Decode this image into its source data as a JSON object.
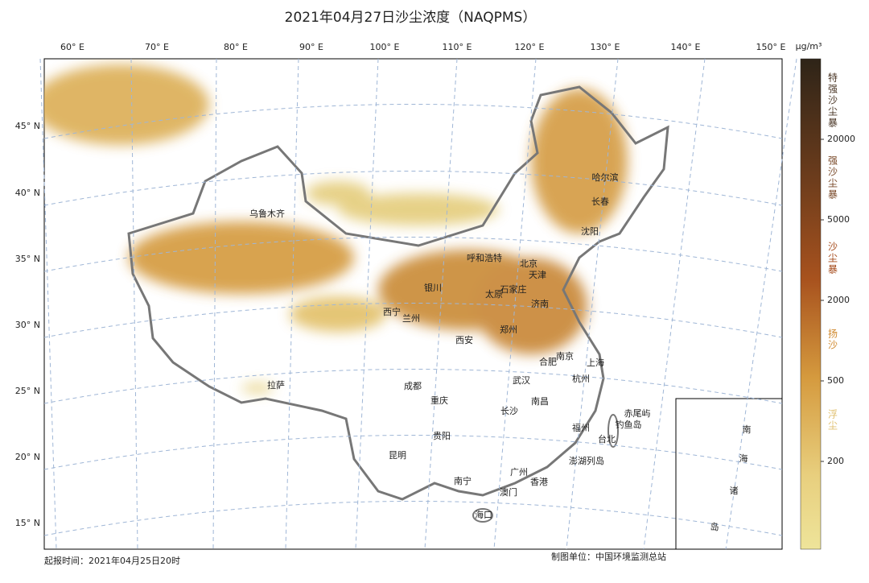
{
  "title": "2021年04月27日沙尘浓度（NAQPMS）",
  "longitude_labels": [
    "60° E",
    "70° E",
    "80° E",
    "90° E",
    "100° E",
    "110° E",
    "120° E",
    "130° E",
    "140° E",
    "150° E"
  ],
  "latitude_labels": [
    "45° N",
    "40° N",
    "35° N",
    "30° N",
    "25° N",
    "20° N",
    "15° N"
  ],
  "cities": [
    "乌鲁木齐",
    "哈尔滨",
    "长春",
    "沈阳",
    "呼和浩特",
    "北京",
    "天津",
    "银川",
    "石家庄",
    "太原",
    "济南",
    "西宁",
    "兰州",
    "郑州",
    "西安",
    "合肥",
    "南京",
    "上海",
    "武汉",
    "杭州",
    "拉萨",
    "成都",
    "重庆",
    "南昌",
    "长沙",
    "福州",
    "赤尾屿",
    "钓鱼岛",
    "贵阳",
    "台北",
    "昆明",
    "澎湖列岛",
    "广州",
    "南宁",
    "香港",
    "澳门",
    "海口"
  ],
  "inset_labels": [
    "南",
    "海",
    "诸",
    "岛"
  ],
  "colorbar": {
    "unit": "μg/m³",
    "ticks": [
      20000,
      5000,
      2000,
      500,
      200
    ],
    "levels": [
      "特强沙尘暴",
      "强沙尘暴",
      "沙尘暴",
      "扬沙",
      "浮尘"
    ]
  },
  "footer": {
    "forecast_time": "起报时间：2021年04月25日20时",
    "producer": "制图单位：中国环境监测总站"
  }
}
